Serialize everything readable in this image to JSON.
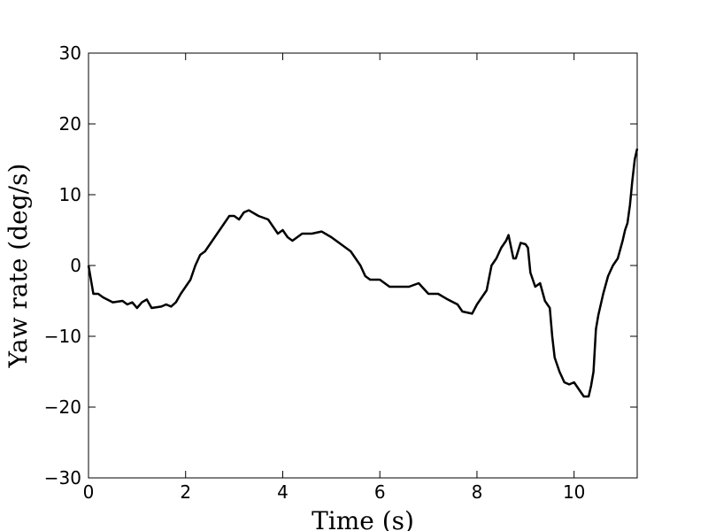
{
  "chart_data": {
    "type": "line",
    "xlabel": "Time (s)",
    "ylabel": "Yaw rate (deg/s)",
    "x": [
      0,
      0.1,
      0.2,
      0.3,
      0.5,
      0.7,
      0.8,
      0.9,
      1.0,
      1.1,
      1.2,
      1.3,
      1.5,
      1.6,
      1.7,
      1.8,
      1.9,
      2.0,
      2.1,
      2.2,
      2.3,
      2.4,
      2.5,
      2.6,
      2.7,
      2.8,
      2.9,
      3.0,
      3.1,
      3.2,
      3.3,
      3.5,
      3.7,
      3.8,
      3.9,
      4.0,
      4.1,
      4.2,
      4.3,
      4.4,
      4.6,
      4.8,
      5.0,
      5.2,
      5.4,
      5.5,
      5.6,
      5.7,
      5.8,
      6.0,
      6.2,
      6.4,
      6.6,
      6.8,
      7.0,
      7.2,
      7.4,
      7.6,
      7.7,
      7.9,
      8.0,
      8.1,
      8.2,
      8.3,
      8.4,
      8.5,
      8.6,
      8.65,
      8.75,
      8.8,
      8.9,
      9.0,
      9.05,
      9.1,
      9.2,
      9.3,
      9.4,
      9.5,
      9.55,
      9.6,
      9.7,
      9.8,
      9.9,
      10.0,
      10.1,
      10.2,
      10.3,
      10.35,
      10.4,
      10.45,
      10.5,
      10.6,
      10.7,
      10.8,
      10.9,
      11.0,
      11.05,
      11.1,
      11.15,
      11.2,
      11.25,
      11.3
    ],
    "series": [
      {
        "color": "#000000",
        "values": [
          0,
          -4,
          -4,
          -4.5,
          -5.2,
          -5,
          -5.5,
          -5.2,
          -6,
          -5.2,
          -4.8,
          -6,
          -5.8,
          -5.5,
          -5.8,
          -5.2,
          -4,
          -3,
          -2,
          0,
          1.5,
          2,
          3,
          4,
          5,
          6,
          7,
          7,
          6.5,
          7.5,
          7.8,
          7,
          6.5,
          5.5,
          4.5,
          5,
          4,
          3.5,
          4,
          4.5,
          4.5,
          4.8,
          4,
          3,
          2,
          1,
          0,
          -1.5,
          -2,
          -2,
          -3,
          -3,
          -3,
          -2.5,
          -4,
          -4,
          -4.8,
          -5.5,
          -6.5,
          -6.8,
          -5.5,
          -4.5,
          -3.5,
          0,
          1,
          2.5,
          3.5,
          4.3,
          1,
          1,
          3.2,
          3,
          2.5,
          -1,
          -3,
          -2.5,
          -5,
          -6,
          -10,
          -13,
          -15,
          -16.5,
          -16.8,
          -16.5,
          -17.5,
          -18.5,
          -18.5,
          -17,
          -15,
          -9,
          -7,
          -4,
          -1.5,
          0,
          1,
          3.5,
          5,
          6,
          8.5,
          12,
          15,
          16.5
        ]
      }
    ],
    "xlim": [
      0,
      11.3
    ],
    "xticks": [
      0,
      2,
      4,
      6,
      8,
      10
    ],
    "ylim": [
      -30,
      30
    ],
    "yticks": [
      {
        "value": -30,
        "label": "−30"
      },
      {
        "value": -20,
        "label": "−20"
      },
      {
        "value": -10,
        "label": "−10"
      },
      0,
      10,
      20,
      30
    ],
    "grid": false
  }
}
